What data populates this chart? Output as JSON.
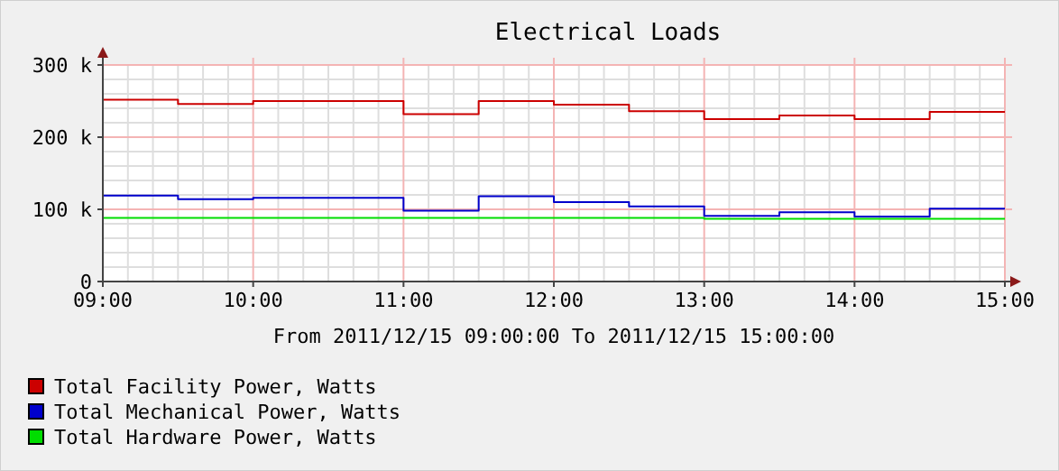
{
  "chart_data": {
    "type": "step",
    "title": "Electrical Loads",
    "xlabel": "From 2011/12/15 09:00:00 To 2011/12/15 15:00:00",
    "x": [
      "2011-12-15T09:00",
      "2011-12-15T09:30",
      "2011-12-15T10:00",
      "2011-12-15T10:30",
      "2011-12-15T11:00",
      "2011-12-15T11:30",
      "2011-12-15T12:00",
      "2011-12-15T12:30",
      "2011-12-15T13:00",
      "2011-12-15T13:30",
      "2011-12-15T14:00",
      "2011-12-15T14:30",
      "2011-12-15T15:00"
    ],
    "series": [
      {
        "name": "Total Facility Power, Watts",
        "color": "#cc0000",
        "values": [
          252000,
          246000,
          250000,
          250000,
          232000,
          250000,
          245000,
          236000,
          225000,
          230000,
          225000,
          235000,
          235000
        ]
      },
      {
        "name": "Total Mechanical Power, Watts",
        "color": "#0000cc",
        "values": [
          119000,
          114000,
          116000,
          116000,
          98000,
          118000,
          110000,
          104000,
          91000,
          96000,
          90000,
          101000,
          101000
        ]
      },
      {
        "name": "Total Hardware Power, Watts",
        "color": "#00dd00",
        "values": [
          88000,
          88000,
          88000,
          88000,
          88000,
          88000,
          88000,
          88000,
          87000,
          87000,
          87000,
          87000,
          87000
        ]
      }
    ],
    "xlim": [
      "2011-12-15T09:00",
      "2011-12-15T15:00"
    ],
    "xticks": [
      {
        "value": "2011-12-15T09:00",
        "label": "09:00"
      },
      {
        "value": "2011-12-15T10:00",
        "label": "10:00"
      },
      {
        "value": "2011-12-15T11:00",
        "label": "11:00"
      },
      {
        "value": "2011-12-15T12:00",
        "label": "12:00"
      },
      {
        "value": "2011-12-15T13:00",
        "label": "13:00"
      },
      {
        "value": "2011-12-15T14:00",
        "label": "14:00"
      },
      {
        "value": "2011-12-15T15:00",
        "label": "15:00"
      }
    ],
    "ylim": [
      0,
      300000
    ],
    "yticks": [
      {
        "value": 0,
        "label": "0"
      },
      {
        "value": 100000,
        "label": "100 k"
      },
      {
        "value": 200000,
        "label": "200 k"
      },
      {
        "value": 300000,
        "label": "300 k"
      }
    ],
    "grid": true,
    "legend": "bottom left"
  }
}
